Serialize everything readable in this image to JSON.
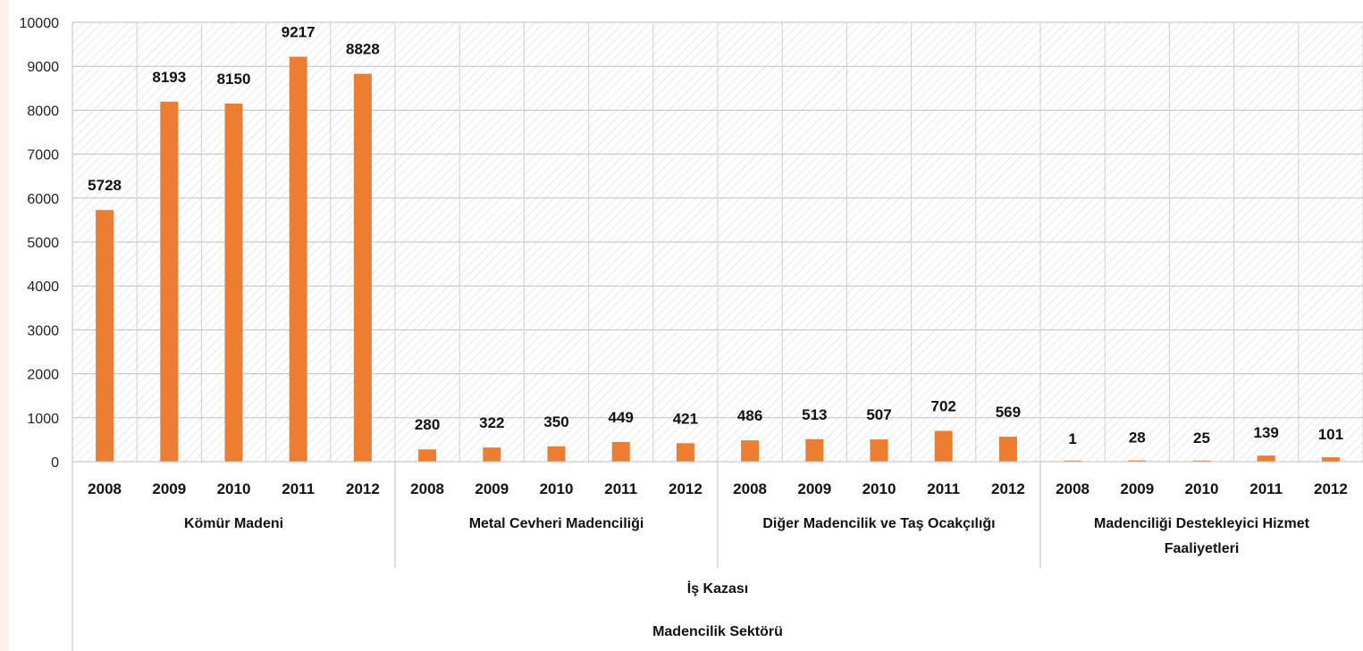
{
  "chart_data": {
    "type": "bar",
    "title": "",
    "xlabel": "",
    "ylabel": "",
    "ylim": [
      0,
      10000
    ],
    "yticks": [
      0,
      1000,
      2000,
      3000,
      4000,
      5000,
      6000,
      7000,
      8000,
      9000,
      10000
    ],
    "grid": true,
    "legend": "none",
    "colors": {
      "bar": "#ED7D31",
      "grid": "#BFBFBF",
      "hatch": "#D9D9D9",
      "left_strip": "#FBF1E6"
    },
    "categories": [
      "2008",
      "2009",
      "2010",
      "2011",
      "2012",
      "2008",
      "2009",
      "2010",
      "2011",
      "2012",
      "2008",
      "2009",
      "2010",
      "2011",
      "2012",
      "2008",
      "2009",
      "2010",
      "2011",
      "2012"
    ],
    "values": [
      5728,
      8193,
      8150,
      9217,
      8828,
      280,
      322,
      350,
      449,
      421,
      486,
      513,
      507,
      702,
      569,
      1,
      28,
      25,
      139,
      101
    ],
    "groups": [
      {
        "label_lines": [
          "Kömür Madeni"
        ],
        "start": 0,
        "end": 4
      },
      {
        "label_lines": [
          "Metal Cevheri Madenciliği"
        ],
        "start": 5,
        "end": 9
      },
      {
        "label_lines": [
          "Diğer Madencilik ve Taş Ocakçılığı"
        ],
        "start": 10,
        "end": 14
      },
      {
        "label_lines": [
          "Madenciliği Destekleyici Hizmet",
          "Faaliyetleri"
        ],
        "start": 15,
        "end": 19
      }
    ],
    "level2_label": "İş Kazası",
    "level3_label": "Madencilik Sektörü"
  }
}
